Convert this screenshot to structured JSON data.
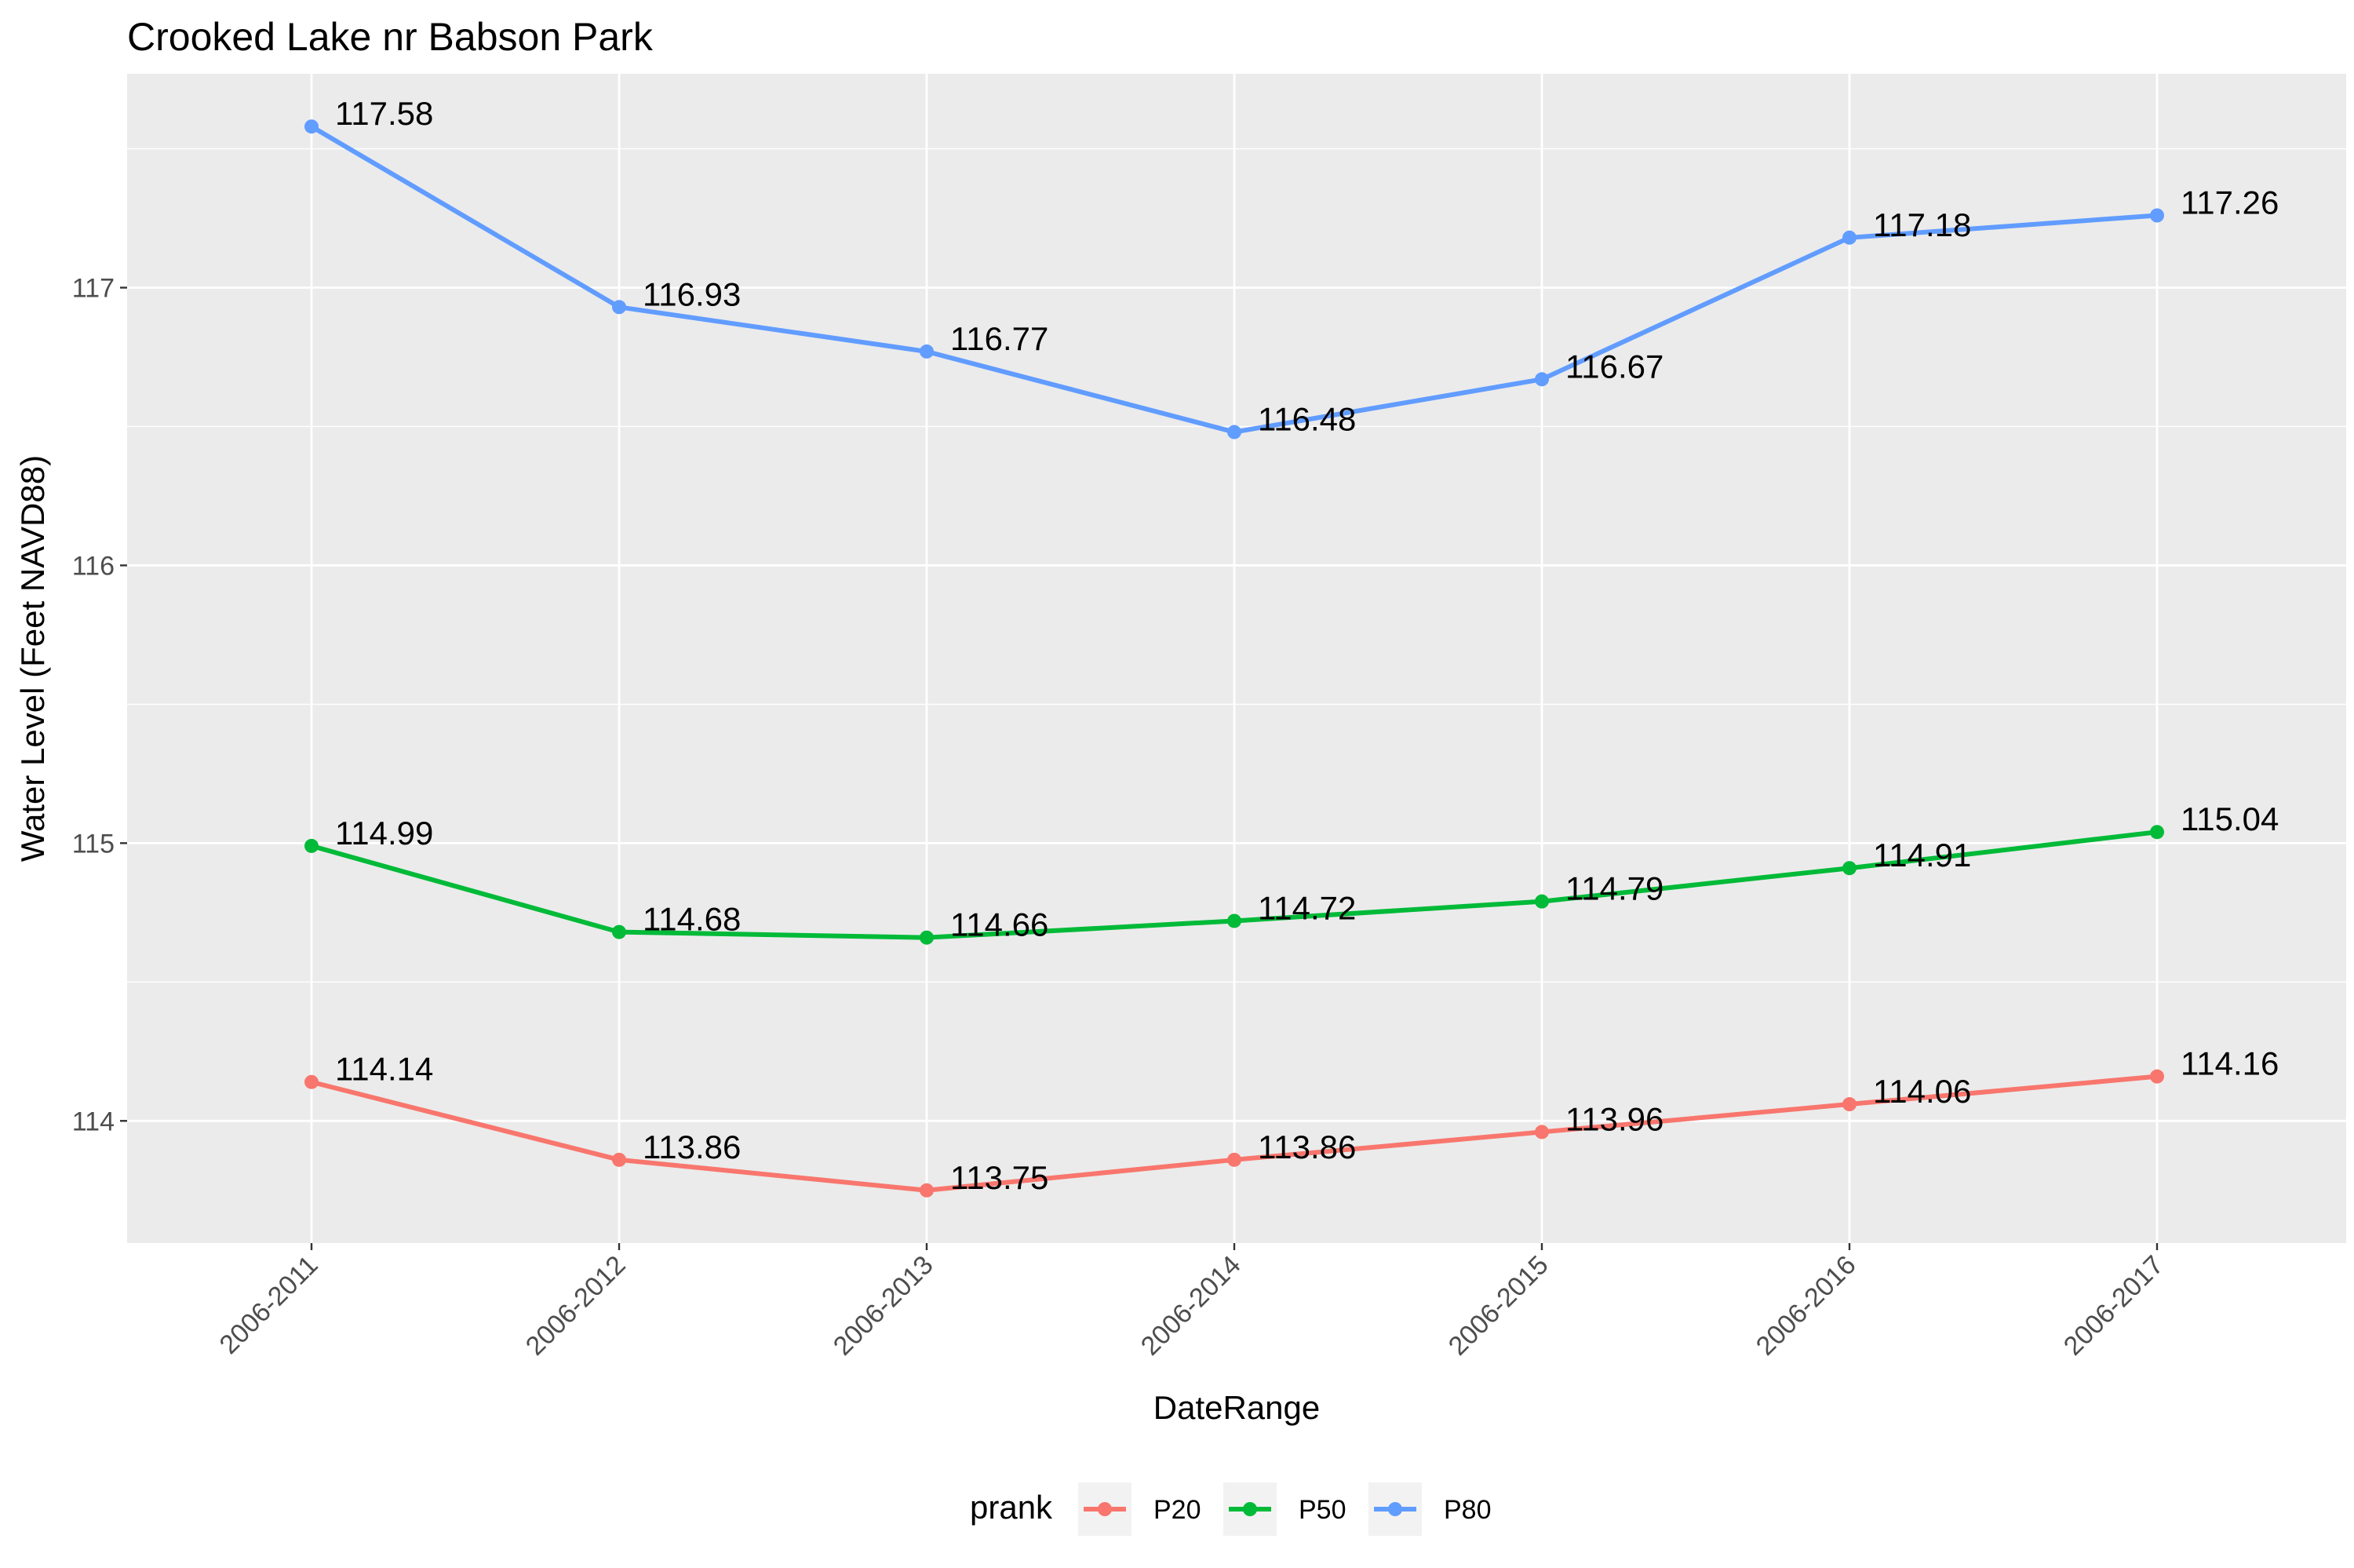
{
  "chart_data": {
    "type": "line",
    "title": "Crooked Lake nr Babson Park",
    "xlabel": "DateRange",
    "ylabel": "Water Level (Feet NAVD88)",
    "categories": [
      "2006-2011",
      "2006-2012",
      "2006-2013",
      "2006-2014",
      "2006-2015",
      "2006-2016",
      "2006-2017"
    ],
    "y_ticks": [
      114,
      115,
      116,
      117
    ],
    "ylim": [
      113.56,
      117.77
    ],
    "grid": true,
    "legend": {
      "title": "prank",
      "position": "bottom"
    },
    "series": [
      {
        "name": "P20",
        "color": "#F8766D",
        "values": [
          114.14,
          113.86,
          113.75,
          113.86,
          113.96,
          114.06,
          114.16
        ],
        "labels": [
          "114.14",
          "113.86",
          "113.75",
          "113.86",
          "113.96",
          "114.06",
          "114.16"
        ]
      },
      {
        "name": "P50",
        "color": "#00BA38",
        "values": [
          114.99,
          114.68,
          114.66,
          114.72,
          114.79,
          114.91,
          115.04
        ],
        "labels": [
          "114.99",
          "114.68",
          "114.66",
          "114.72",
          "114.79",
          "114.91",
          "115.04"
        ]
      },
      {
        "name": "P80",
        "color": "#619CFF",
        "values": [
          117.58,
          116.93,
          116.77,
          116.48,
          116.67,
          117.18,
          117.26
        ],
        "labels": [
          "117.58",
          "116.93",
          "116.77",
          "116.48",
          "116.67",
          "117.18",
          "117.26"
        ]
      }
    ]
  }
}
